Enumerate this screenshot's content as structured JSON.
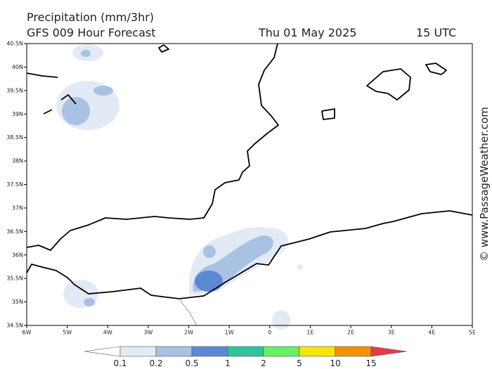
{
  "header": {
    "title": "Precipitation (mm/3hr)",
    "model": "GFS 009 Hour Forecast",
    "date": "Thu 01 May 2025",
    "time": "15 UTC"
  },
  "axes": {
    "lat_labels": [
      "40.5N",
      "40N",
      "39.5N",
      "39N",
      "38.5N",
      "38N",
      "37.5N",
      "37N",
      "36.5N",
      "36N",
      "35.5N",
      "35N",
      "34.5N"
    ],
    "lon_labels": [
      "6W",
      "5W",
      "4W",
      "3W",
      "2W",
      "1W",
      "0",
      "1E",
      "2E",
      "3E",
      "4E",
      "5E"
    ]
  },
  "legend": {
    "labels": [
      "0.1",
      "0.2",
      "0.5",
      "1",
      "2",
      "5",
      "10",
      "15"
    ],
    "colors": [
      "#ffffff",
      "#e2eaf6",
      "#a9c1e3",
      "#5c89d3",
      "#2fc49c",
      "#66f066",
      "#f4e600",
      "#f29200",
      "#e63a46"
    ]
  },
  "watermark": "© www.PassageWeather.com"
}
